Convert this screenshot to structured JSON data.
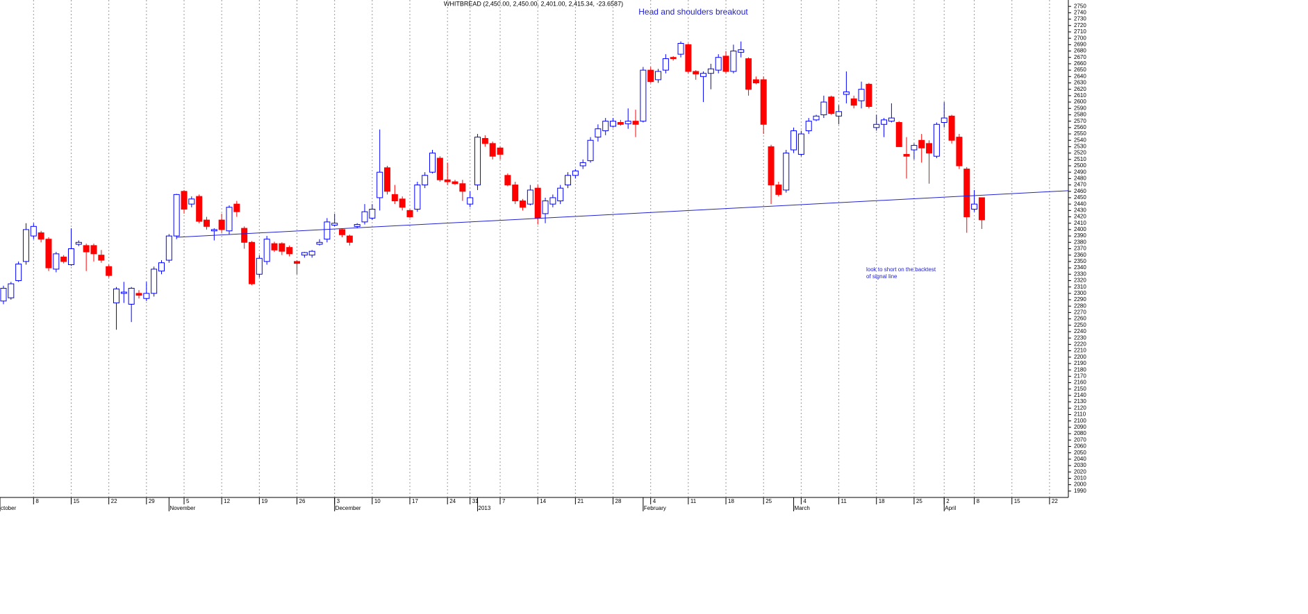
{
  "chart_data": {
    "type": "candlestick",
    "title": "WHITBREAD (2,450.00, 2,450.00, 2,401.00, 2,415.34, -23.6587)",
    "annotations": [
      "Head and shoulders breakout",
      "look to short on the backtest",
      "of signal line"
    ],
    "up_color": "#ffffff",
    "down_color": "#ff0000",
    "outline_color": "#0000ff",
    "down_outline_color": "#ff0000",
    "neckline": {
      "x": [
        23,
        141.5
      ],
      "y": [
        2388,
        2461
      ],
      "color": "#2020d0"
    },
    "grid": true,
    "xlim": [
      -0.46,
      141.5
    ],
    "ylim": [
      1980,
      2760
    ],
    "xticks": [
      {
        "value": 4,
        "label": "8"
      },
      {
        "value": 9,
        "label": "15"
      },
      {
        "value": 14,
        "label": "22"
      },
      {
        "value": 19,
        "label": "29"
      },
      {
        "value": 24,
        "label": "5"
      },
      {
        "value": 29,
        "label": "12"
      },
      {
        "value": 34,
        "label": "19"
      },
      {
        "value": 39,
        "label": "26"
      },
      {
        "value": 44,
        "label": "3"
      },
      {
        "value": 49,
        "label": "10"
      },
      {
        "value": 54,
        "label": "17"
      },
      {
        "value": 59,
        "label": "24"
      },
      {
        "value": 62,
        "label": "31"
      },
      {
        "value": 66,
        "label": "7"
      },
      {
        "value": 71,
        "label": "14"
      },
      {
        "value": 76,
        "label": "21"
      },
      {
        "value": 81,
        "label": "28"
      },
      {
        "value": 86,
        "label": "4"
      },
      {
        "value": 91,
        "label": "11"
      },
      {
        "value": 96,
        "label": "18"
      },
      {
        "value": 101,
        "label": "25"
      },
      {
        "value": 106,
        "label": "4"
      },
      {
        "value": 111,
        "label": "11"
      },
      {
        "value": 116,
        "label": "18"
      },
      {
        "value": 121,
        "label": "25"
      },
      {
        "value": 125,
        "label": "2"
      },
      {
        "value": 129,
        "label": "8"
      },
      {
        "value": 134,
        "label": "15"
      },
      {
        "value": 139,
        "label": "22"
      }
    ],
    "month_ticks": [
      {
        "value": -0.46,
        "label": "ctober"
      },
      {
        "value": 22,
        "label": "November"
      },
      {
        "value": 44,
        "label": "December"
      },
      {
        "value": 63,
        "label": "2013"
      },
      {
        "value": 85,
        "label": "February"
      },
      {
        "value": 105,
        "label": "March"
      },
      {
        "value": 125,
        "label": "April"
      }
    ],
    "yticks": [
      1990,
      2000,
      2010,
      2020,
      2030,
      2040,
      2050,
      2060,
      2070,
      2080,
      2090,
      2100,
      2110,
      2120,
      2130,
      2140,
      2150,
      2160,
      2170,
      2180,
      2190,
      2200,
      2210,
      2220,
      2230,
      2240,
      2250,
      2260,
      2270,
      2280,
      2290,
      2300,
      2310,
      2320,
      2330,
      2340,
      2350,
      2360,
      2370,
      2380,
      2390,
      2400,
      2410,
      2420,
      2430,
      2440,
      2450,
      2460,
      2470,
      2480,
      2490,
      2500,
      2510,
      2520,
      2530,
      2540,
      2550,
      2560,
      2570,
      2580,
      2590,
      2600,
      2610,
      2620,
      2630,
      2640,
      2650,
      2660,
      2670,
      2680,
      2690,
      2700,
      2710,
      2720,
      2730,
      2740,
      2750
    ],
    "candles": [
      {
        "x": 0,
        "open": 2288,
        "high": 2312,
        "low": 2283,
        "close": 2308
      },
      {
        "x": 1,
        "open": 2293,
        "high": 2318,
        "low": 2290,
        "close": 2315
      },
      {
        "x": 2,
        "open": 2320,
        "high": 2350,
        "low": 2318,
        "close": 2346
      },
      {
        "x": 3,
        "open": 2350,
        "high": 2410,
        "low": 2345,
        "close": 2400
      },
      {
        "x": 4,
        "open": 2390,
        "high": 2410,
        "low": 2385,
        "close": 2405
      },
      {
        "x": 5,
        "open": 2395,
        "high": 2398,
        "low": 2380,
        "close": 2385
      },
      {
        "x": 6,
        "open": 2385,
        "high": 2388,
        "low": 2335,
        "close": 2340
      },
      {
        "x": 7,
        "open": 2338,
        "high": 2365,
        "low": 2333,
        "close": 2362
      },
      {
        "x": 8,
        "open": 2357,
        "high": 2360,
        "low": 2347,
        "close": 2350
      },
      {
        "x": 9,
        "open": 2345,
        "high": 2402,
        "low": 2343,
        "close": 2370
      },
      {
        "x": 10,
        "open": 2377,
        "high": 2383,
        "low": 2374,
        "close": 2380
      },
      {
        "x": 11,
        "open": 2375,
        "high": 2378,
        "low": 2335,
        "close": 2365
      },
      {
        "x": 12,
        "open": 2375,
        "high": 2378,
        "low": 2350,
        "close": 2362
      },
      {
        "x": 13,
        "open": 2360,
        "high": 2368,
        "low": 2348,
        "close": 2352
      },
      {
        "x": 14,
        "open": 2342,
        "high": 2345,
        "low": 2325,
        "close": 2328
      },
      {
        "x": 15,
        "open": 2285,
        "high": 2310,
        "low": 2243,
        "close": 2307
      },
      {
        "x": 16,
        "open": 2300,
        "high": 2318,
        "low": 2285,
        "close": 2302
      },
      {
        "x": 17,
        "open": 2283,
        "high": 2310,
        "low": 2255,
        "close": 2308
      },
      {
        "x": 18,
        "open": 2300,
        "high": 2305,
        "low": 2292,
        "close": 2297
      },
      {
        "x": 19,
        "open": 2292,
        "high": 2318,
        "low": 2288,
        "close": 2300
      },
      {
        "x": 20,
        "open": 2300,
        "high": 2342,
        "low": 2295,
        "close": 2338
      },
      {
        "x": 21,
        "open": 2335,
        "high": 2352,
        "low": 2330,
        "close": 2348
      },
      {
        "x": 22,
        "open": 2352,
        "high": 2393,
        "low": 2348,
        "close": 2390
      },
      {
        "x": 23,
        "open": 2390,
        "high": 2456,
        "low": 2385,
        "close": 2455
      },
      {
        "x": 24,
        "open": 2460,
        "high": 2462,
        "low": 2425,
        "close": 2432
      },
      {
        "x": 25,
        "open": 2440,
        "high": 2452,
        "low": 2435,
        "close": 2448
      },
      {
        "x": 26,
        "open": 2452,
        "high": 2455,
        "low": 2410,
        "close": 2413
      },
      {
        "x": 27,
        "open": 2415,
        "high": 2420,
        "low": 2400,
        "close": 2405
      },
      {
        "x": 28,
        "open": 2398,
        "high": 2402,
        "low": 2383,
        "close": 2400
      },
      {
        "x": 29,
        "open": 2415,
        "high": 2425,
        "low": 2395,
        "close": 2400
      },
      {
        "x": 30,
        "open": 2398,
        "high": 2438,
        "low": 2392,
        "close": 2435
      },
      {
        "x": 31,
        "open": 2440,
        "high": 2445,
        "low": 2420,
        "close": 2428
      },
      {
        "x": 32,
        "open": 2402,
        "high": 2405,
        "low": 2370,
        "close": 2380
      },
      {
        "x": 33,
        "open": 2380,
        "high": 2382,
        "low": 2313,
        "close": 2315
      },
      {
        "x": 34,
        "open": 2330,
        "high": 2360,
        "low": 2325,
        "close": 2355
      },
      {
        "x": 35,
        "open": 2350,
        "high": 2390,
        "low": 2345,
        "close": 2385
      },
      {
        "x": 36,
        "open": 2378,
        "high": 2381,
        "low": 2365,
        "close": 2368
      },
      {
        "x": 37,
        "open": 2378,
        "high": 2380,
        "low": 2360,
        "close": 2366
      },
      {
        "x": 38,
        "open": 2372,
        "high": 2375,
        "low": 2358,
        "close": 2362
      },
      {
        "x": 39,
        "open": 2350,
        "high": 2352,
        "low": 2330,
        "close": 2347
      },
      {
        "x": 40,
        "open": 2360,
        "high": 2365,
        "low": 2356,
        "close": 2364
      },
      {
        "x": 41,
        "open": 2360,
        "high": 2368,
        "low": 2356,
        "close": 2366
      },
      {
        "x": 42,
        "open": 2377,
        "high": 2385,
        "low": 2375,
        "close": 2380
      },
      {
        "x": 43,
        "open": 2385,
        "high": 2418,
        "low": 2380,
        "close": 2412
      },
      {
        "x": 44,
        "open": 2407,
        "high": 2425,
        "low": 2405,
        "close": 2410
      },
      {
        "x": 45,
        "open": 2400,
        "high": 2402,
        "low": 2388,
        "close": 2392
      },
      {
        "x": 46,
        "open": 2390,
        "high": 2392,
        "low": 2375,
        "close": 2380
      },
      {
        "x": 47,
        "open": 2405,
        "high": 2410,
        "low": 2402,
        "close": 2408
      },
      {
        "x": 48,
        "open": 2412,
        "high": 2440,
        "low": 2408,
        "close": 2428
      },
      {
        "x": 49,
        "open": 2418,
        "high": 2440,
        "low": 2415,
        "close": 2432
      },
      {
        "x": 50,
        "open": 2450,
        "high": 2557,
        "low": 2430,
        "close": 2490
      },
      {
        "x": 51,
        "open": 2497,
        "high": 2500,
        "low": 2455,
        "close": 2460
      },
      {
        "x": 52,
        "open": 2455,
        "high": 2470,
        "low": 2440,
        "close": 2445
      },
      {
        "x": 53,
        "open": 2448,
        "high": 2452,
        "low": 2430,
        "close": 2435
      },
      {
        "x": 54,
        "open": 2430,
        "high": 2432,
        "low": 2418,
        "close": 2420
      },
      {
        "x": 55,
        "open": 2432,
        "high": 2475,
        "low": 2428,
        "close": 2470
      },
      {
        "x": 56,
        "open": 2470,
        "high": 2490,
        "low": 2465,
        "close": 2485
      },
      {
        "x": 57,
        "open": 2490,
        "high": 2525,
        "low": 2488,
        "close": 2520
      },
      {
        "x": 58,
        "open": 2512,
        "high": 2515,
        "low": 2475,
        "close": 2478
      },
      {
        "x": 59,
        "open": 2478,
        "high": 2505,
        "low": 2470,
        "close": 2475
      },
      {
        "x": 60,
        "open": 2475,
        "high": 2478,
        "low": 2470,
        "close": 2472
      },
      {
        "x": 61,
        "open": 2472,
        "high": 2478,
        "low": 2445,
        "close": 2460
      },
      {
        "x": 62,
        "open": 2440,
        "high": 2460,
        "low": 2435,
        "close": 2450
      },
      {
        "x": 63,
        "open": 2470,
        "high": 2550,
        "low": 2462,
        "close": 2545
      },
      {
        "x": 64,
        "open": 2543,
        "high": 2548,
        "low": 2530,
        "close": 2535
      },
      {
        "x": 65,
        "open": 2535,
        "high": 2538,
        "low": 2510,
        "close": 2515
      },
      {
        "x": 66,
        "open": 2528,
        "high": 2530,
        "low": 2510,
        "close": 2518
      },
      {
        "x": 67,
        "open": 2485,
        "high": 2488,
        "low": 2468,
        "close": 2470
      },
      {
        "x": 68,
        "open": 2470,
        "high": 2475,
        "low": 2440,
        "close": 2445
      },
      {
        "x": 69,
        "open": 2445,
        "high": 2448,
        "low": 2430,
        "close": 2435
      },
      {
        "x": 70,
        "open": 2440,
        "high": 2470,
        "low": 2438,
        "close": 2462
      },
      {
        "x": 71,
        "open": 2465,
        "high": 2470,
        "low": 2408,
        "close": 2418
      },
      {
        "x": 72,
        "open": 2425,
        "high": 2450,
        "low": 2410,
        "close": 2445
      },
      {
        "x": 73,
        "open": 2440,
        "high": 2455,
        "low": 2435,
        "close": 2450
      },
      {
        "x": 74,
        "open": 2445,
        "high": 2470,
        "low": 2440,
        "close": 2465
      },
      {
        "x": 75,
        "open": 2470,
        "high": 2490,
        "low": 2465,
        "close": 2485
      },
      {
        "x": 76,
        "open": 2485,
        "high": 2495,
        "low": 2480,
        "close": 2492
      },
      {
        "x": 77,
        "open": 2500,
        "high": 2510,
        "low": 2495,
        "close": 2505
      },
      {
        "x": 78,
        "open": 2508,
        "high": 2545,
        "low": 2505,
        "close": 2540
      },
      {
        "x": 79,
        "open": 2545,
        "high": 2565,
        "low": 2538,
        "close": 2558
      },
      {
        "x": 80,
        "open": 2555,
        "high": 2575,
        "low": 2548,
        "close": 2570
      },
      {
        "x": 81,
        "open": 2562,
        "high": 2575,
        "low": 2560,
        "close": 2570
      },
      {
        "x": 82,
        "open": 2568,
        "high": 2572,
        "low": 2563,
        "close": 2565
      },
      {
        "x": 83,
        "open": 2566,
        "high": 2590,
        "low": 2558,
        "close": 2570
      },
      {
        "x": 84,
        "open": 2570,
        "high": 2588,
        "low": 2545,
        "close": 2565
      },
      {
        "x": 85,
        "open": 2570,
        "high": 2655,
        "low": 2568,
        "close": 2650
      },
      {
        "x": 86,
        "open": 2650,
        "high": 2655,
        "low": 2630,
        "close": 2632
      },
      {
        "x": 87,
        "open": 2635,
        "high": 2652,
        "low": 2630,
        "close": 2648
      },
      {
        "x": 88,
        "open": 2650,
        "high": 2675,
        "low": 2645,
        "close": 2668
      },
      {
        "x": 89,
        "open": 2670,
        "high": 2672,
        "low": 2665,
        "close": 2668
      },
      {
        "x": 90,
        "open": 2675,
        "high": 2695,
        "low": 2670,
        "close": 2692
      },
      {
        "x": 91,
        "open": 2690,
        "high": 2692,
        "low": 2645,
        "close": 2648
      },
      {
        "x": 92,
        "open": 2648,
        "high": 2650,
        "low": 2635,
        "close": 2644
      },
      {
        "x": 93,
        "open": 2640,
        "high": 2648,
        "low": 2600,
        "close": 2645
      },
      {
        "x": 94,
        "open": 2645,
        "high": 2660,
        "low": 2620,
        "close": 2652
      },
      {
        "x": 95,
        "open": 2650,
        "high": 2675,
        "low": 2645,
        "close": 2670
      },
      {
        "x": 96,
        "open": 2672,
        "high": 2680,
        "low": 2645,
        "close": 2648
      },
      {
        "x": 97,
        "open": 2648,
        "high": 2690,
        "low": 2645,
        "close": 2680
      },
      {
        "x": 98,
        "open": 2678,
        "high": 2695,
        "low": 2670,
        "close": 2682
      },
      {
        "x": 99,
        "open": 2668,
        "high": 2670,
        "low": 2610,
        "close": 2620
      },
      {
        "x": 100,
        "open": 2635,
        "high": 2640,
        "low": 2628,
        "close": 2630
      },
      {
        "x": 101,
        "open": 2635,
        "high": 2640,
        "low": 2550,
        "close": 2565
      },
      {
        "x": 102,
        "open": 2530,
        "high": 2533,
        "low": 2440,
        "close": 2470
      },
      {
        "x": 103,
        "open": 2470,
        "high": 2475,
        "low": 2452,
        "close": 2455
      },
      {
        "x": 104,
        "open": 2462,
        "high": 2525,
        "low": 2458,
        "close": 2520
      },
      {
        "x": 105,
        "open": 2525,
        "high": 2560,
        "low": 2520,
        "close": 2555
      },
      {
        "x": 106,
        "open": 2518,
        "high": 2555,
        "low": 2515,
        "close": 2550
      },
      {
        "x": 107,
        "open": 2555,
        "high": 2575,
        "low": 2550,
        "close": 2570
      },
      {
        "x": 108,
        "open": 2572,
        "high": 2580,
        "low": 2570,
        "close": 2578
      },
      {
        "x": 109,
        "open": 2580,
        "high": 2610,
        "low": 2575,
        "close": 2600
      },
      {
        "x": 110,
        "open": 2608,
        "high": 2610,
        "low": 2580,
        "close": 2582
      },
      {
        "x": 111,
        "open": 2578,
        "high": 2595,
        "low": 2565,
        "close": 2585
      },
      {
        "x": 112,
        "open": 2612,
        "high": 2648,
        "low": 2598,
        "close": 2616
      },
      {
        "x": 113,
        "open": 2605,
        "high": 2610,
        "low": 2590,
        "close": 2595
      },
      {
        "x": 114,
        "open": 2602,
        "high": 2632,
        "low": 2590,
        "close": 2620
      },
      {
        "x": 115,
        "open": 2628,
        "high": 2630,
        "low": 2590,
        "close": 2593
      },
      {
        "x": 116,
        "open": 2560,
        "high": 2580,
        "low": 2555,
        "close": 2565
      },
      {
        "x": 117,
        "open": 2565,
        "high": 2575,
        "low": 2545,
        "close": 2572
      },
      {
        "x": 118,
        "open": 2570,
        "high": 2598,
        "low": 2568,
        "close": 2575
      },
      {
        "x": 119,
        "open": 2568,
        "high": 2570,
        "low": 2530,
        "close": 2530
      },
      {
        "x": 120,
        "open": 2518,
        "high": 2545,
        "low": 2480,
        "close": 2515
      },
      {
        "x": 121,
        "open": 2525,
        "high": 2535,
        "low": 2510,
        "close": 2532
      },
      {
        "x": 122,
        "open": 2540,
        "high": 2550,
        "low": 2505,
        "close": 2528
      },
      {
        "x": 123,
        "open": 2535,
        "high": 2540,
        "low": 2472,
        "close": 2520
      },
      {
        "x": 124,
        "open": 2515,
        "high": 2568,
        "low": 2512,
        "close": 2565
      },
      {
        "x": 125,
        "open": 2568,
        "high": 2600,
        "low": 2560,
        "close": 2575
      },
      {
        "x": 126,
        "open": 2578,
        "high": 2580,
        "low": 2535,
        "close": 2540
      },
      {
        "x": 127,
        "open": 2545,
        "high": 2550,
        "low": 2495,
        "close": 2500
      },
      {
        "x": 128,
        "open": 2495,
        "high": 2498,
        "low": 2395,
        "close": 2420
      },
      {
        "x": 129,
        "open": 2432,
        "high": 2462,
        "low": 2428,
        "close": 2440
      },
      {
        "x": 130,
        "open": 2450,
        "high": 2450,
        "low": 2401,
        "close": 2415.34
      }
    ]
  }
}
